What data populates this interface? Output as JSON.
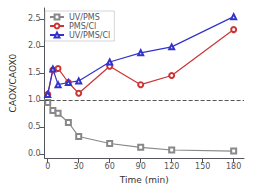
{
  "chart_data": {
    "type": "line",
    "xlabel": "Time (min)",
    "ylabel": "CAOX/CAOX0",
    "x": [
      0,
      5,
      10,
      20,
      30,
      60,
      90,
      120,
      180
    ],
    "series": [
      {
        "name": "UV/PMS",
        "color": "#888888",
        "marker": "square",
        "values": [
          0.95,
          0.8,
          0.75,
          0.58,
          0.32,
          0.19,
          0.12,
          0.07,
          0.05
        ]
      },
      {
        "name": "PMS/Cl",
        "color": "#cc3333",
        "marker": "circle",
        "values": [
          1.1,
          1.55,
          1.58,
          1.32,
          1.12,
          1.62,
          1.28,
          1.45,
          2.3
        ]
      },
      {
        "name": "UV/PMS/Cl",
        "color": "#3333cc",
        "marker": "triangle",
        "values": [
          1.1,
          1.57,
          1.28,
          1.32,
          1.35,
          1.7,
          1.87,
          1.98,
          2.54
        ]
      }
    ],
    "xlim": [
      -3,
      190
    ],
    "ylim": [
      -0.08,
      2.7
    ],
    "xticks": [
      0,
      30,
      60,
      90,
      120,
      150,
      180
    ],
    "yticks": [
      {
        "value": 0.0,
        "label": "0.0"
      },
      0.5,
      {
        "value": 1.0,
        "label": "1.0"
      },
      1.5,
      {
        "value": 2.0,
        "label": "2.0"
      },
      2.5
    ],
    "hline": 1.0,
    "grid": false,
    "legend": "upper left"
  }
}
